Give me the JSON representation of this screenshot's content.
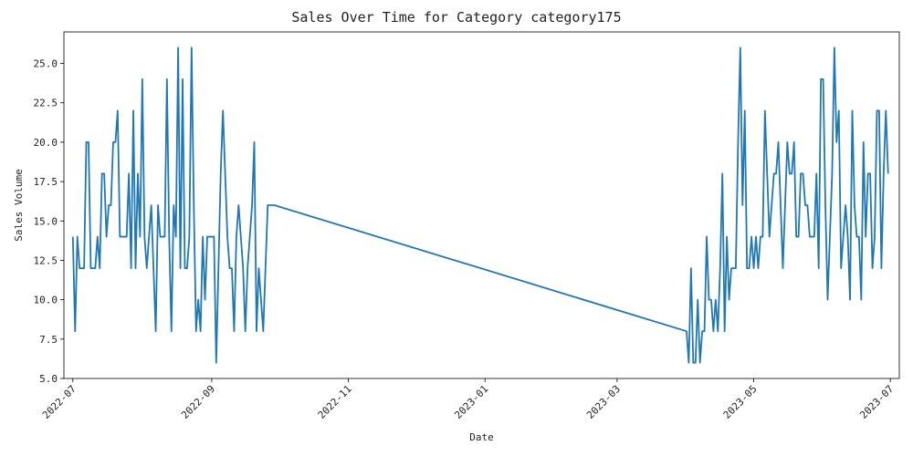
{
  "chart_data": {
    "type": "line",
    "title": "Sales Over Time for Category category175",
    "xlabel": "Date",
    "ylabel": "Sales Volume",
    "xlim": [
      "2022-06-27",
      "2023-07-05"
    ],
    "ylim": [
      5.0,
      27.0
    ],
    "x_ticks": [
      "2022-07",
      "2022-09",
      "2022-11",
      "2023-01",
      "2023-03",
      "2023-05",
      "2023-07"
    ],
    "y_ticks": [
      "5.0",
      "7.5",
      "10.0",
      "12.5",
      "15.0",
      "17.5",
      "20.0",
      "22.5",
      "25.0"
    ],
    "grid": false,
    "line_color": "#1f77b4",
    "series": [
      {
        "x": [
          "2022-07-01",
          "2022-07-02",
          "2022-07-03",
          "2022-07-04",
          "2022-07-05",
          "2022-07-06",
          "2022-07-07",
          "2022-07-08",
          "2022-07-09",
          "2022-07-10",
          "2022-07-11",
          "2022-07-12",
          "2022-07-13",
          "2022-07-14",
          "2022-07-15",
          "2022-07-16",
          "2022-07-17",
          "2022-07-18",
          "2022-07-19",
          "2022-07-20",
          "2022-07-21",
          "2022-07-22",
          "2022-07-23",
          "2022-07-24",
          "2022-07-25",
          "2022-07-26",
          "2022-07-27",
          "2022-07-28",
          "2022-07-29",
          "2022-07-30",
          "2022-07-31",
          "2022-08-01",
          "2022-08-02",
          "2022-08-03",
          "2022-08-04",
          "2022-08-05",
          "2022-08-06",
          "2022-08-07",
          "2022-08-08",
          "2022-08-09",
          "2022-08-10",
          "2022-08-11",
          "2022-08-12",
          "2022-08-13",
          "2022-08-14",
          "2022-08-15",
          "2022-08-16",
          "2022-08-17",
          "2022-08-18",
          "2022-08-19",
          "2022-08-20",
          "2022-08-21",
          "2022-08-22",
          "2022-08-23",
          "2022-08-24",
          "2022-08-25",
          "2022-08-26",
          "2022-08-27",
          "2022-08-28",
          "2022-08-29",
          "2022-08-30",
          "2022-08-31",
          "2022-09-01",
          "2022-09-02",
          "2022-09-03",
          "2022-09-04",
          "2022-09-05",
          "2022-09-06",
          "2022-09-07",
          "2022-09-08",
          "2022-09-09",
          "2022-09-10",
          "2022-09-11",
          "2022-09-12",
          "2022-09-13",
          "2022-09-14",
          "2022-09-15",
          "2022-09-16",
          "2022-09-17",
          "2022-09-18",
          "2022-09-19",
          "2022-09-20",
          "2022-09-21",
          "2022-09-22",
          "2022-09-23",
          "2022-09-24",
          "2022-09-25",
          "2022-09-26",
          "2022-09-27",
          "2022-09-28",
          "2022-09-29",
          "2023-04-01",
          "2023-04-02",
          "2023-04-03",
          "2023-04-04",
          "2023-04-05",
          "2023-04-06",
          "2023-04-07",
          "2023-04-08",
          "2023-04-09",
          "2023-04-10",
          "2023-04-11",
          "2023-04-12",
          "2023-04-13",
          "2023-04-14",
          "2023-04-15",
          "2023-04-16",
          "2023-04-17",
          "2023-04-18",
          "2023-04-19",
          "2023-04-20",
          "2023-04-21",
          "2023-04-22",
          "2023-04-23",
          "2023-04-24",
          "2023-04-25",
          "2023-04-26",
          "2023-04-27",
          "2023-04-28",
          "2023-04-29",
          "2023-04-30",
          "2023-05-01",
          "2023-05-02",
          "2023-05-03",
          "2023-05-04",
          "2023-05-05",
          "2023-05-06",
          "2023-05-07",
          "2023-05-08",
          "2023-05-09",
          "2023-05-10",
          "2023-05-11",
          "2023-05-12",
          "2023-05-13",
          "2023-05-14",
          "2023-05-15",
          "2023-05-16",
          "2023-05-17",
          "2023-05-18",
          "2023-05-19",
          "2023-05-20",
          "2023-05-21",
          "2023-05-22",
          "2023-05-23",
          "2023-05-24",
          "2023-05-25",
          "2023-05-26",
          "2023-05-27",
          "2023-05-28",
          "2023-05-29",
          "2023-05-30",
          "2023-05-31",
          "2023-06-01",
          "2023-06-02",
          "2023-06-03",
          "2023-06-04",
          "2023-06-05",
          "2023-06-06",
          "2023-06-07",
          "2023-06-08",
          "2023-06-09",
          "2023-06-10",
          "2023-06-11",
          "2023-06-12",
          "2023-06-13",
          "2023-06-14",
          "2023-06-15",
          "2023-06-16",
          "2023-06-17",
          "2023-06-18",
          "2023-06-19",
          "2023-06-20",
          "2023-06-21",
          "2023-06-22",
          "2023-06-23",
          "2023-06-24",
          "2023-06-25",
          "2023-06-26",
          "2023-06-27",
          "2023-06-28",
          "2023-06-29",
          "2023-06-30"
        ],
        "y": [
          14,
          8,
          14,
          12,
          12,
          12,
          20,
          20,
          12,
          12,
          12,
          14,
          12,
          18,
          18,
          14,
          16,
          16,
          20,
          20,
          22,
          14,
          14,
          14,
          14,
          18,
          12,
          22,
          12,
          18,
          14,
          24,
          14,
          12,
          14,
          16,
          12,
          8,
          16,
          14,
          14,
          14,
          24,
          14,
          8,
          16,
          14,
          26,
          12,
          24,
          12,
          12,
          14,
          26,
          16,
          8,
          10,
          8,
          14,
          10,
          14,
          14,
          14,
          14,
          6,
          12,
          18,
          22,
          18,
          14,
          12,
          12,
          8,
          14,
          16,
          14,
          12,
          8,
          12,
          14,
          16,
          20,
          8,
          12,
          10,
          8,
          12,
          16,
          16,
          16,
          16,
          8,
          6,
          12,
          6,
          6,
          10,
          6,
          8,
          8,
          14,
          10,
          10,
          8,
          10,
          8,
          12,
          18,
          8,
          14,
          10,
          12,
          12,
          12,
          20,
          26,
          16,
          22,
          12,
          12,
          14,
          12,
          14,
          12,
          14,
          14,
          22,
          18,
          14,
          16,
          18,
          18,
          20,
          16,
          12,
          16,
          20,
          18,
          18,
          20,
          14,
          14,
          18,
          18,
          16,
          16,
          14,
          14,
          14,
          18,
          12,
          24,
          24,
          16,
          10,
          14,
          18,
          26,
          20,
          22,
          12,
          14,
          16,
          14,
          10,
          22,
          16,
          14,
          14,
          10,
          20,
          14,
          18,
          18,
          12,
          14,
          22,
          22,
          12,
          18,
          22,
          18
        ]
      }
    ]
  }
}
